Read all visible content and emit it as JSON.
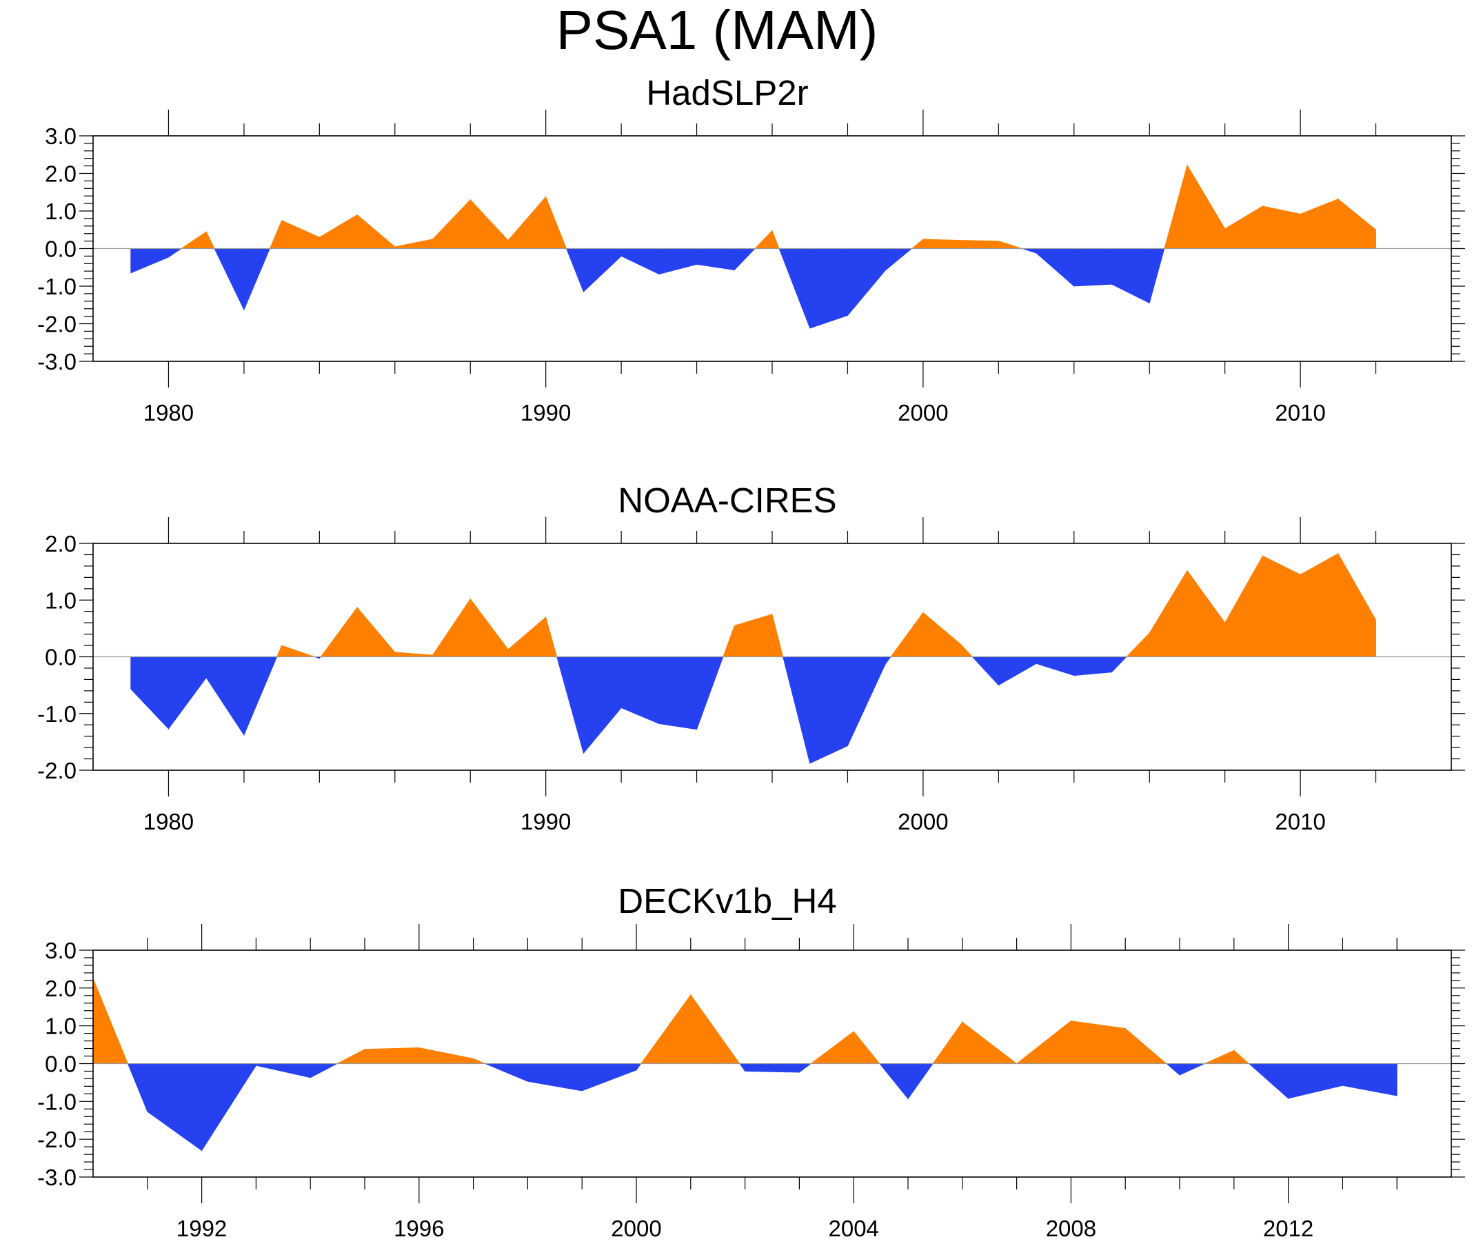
{
  "title": "PSA1 (MAM)",
  "colors": {
    "positive": "#ff8000",
    "negative": "#2541f0",
    "axis": "#000000",
    "zero_line": "#9a9a9a"
  },
  "chart_data": [
    {
      "type": "area",
      "title": "HadSLP2r",
      "xlim": [
        1978,
        2014
      ],
      "ylim": [
        -3,
        3
      ],
      "y_ticks": [
        -3,
        -2,
        -1,
        0,
        1,
        2,
        3
      ],
      "y_tick_labels": [
        "-3.0",
        "-2.0",
        "-1.0",
        "0.0",
        "1.0",
        "2.0",
        "3.0"
      ],
      "x_major_ticks": [
        1980,
        1990,
        2000,
        2010
      ],
      "x_tick_labels": [
        "1980",
        "1990",
        "2000",
        "2010"
      ],
      "x_minor_step": 2,
      "x": [
        1979,
        1980,
        1981,
        1982,
        1983,
        1984,
        1985,
        1986,
        1987,
        1988,
        1989,
        1990,
        1991,
        1992,
        1993,
        1994,
        1995,
        1996,
        1997,
        1998,
        1999,
        2000,
        2001,
        2002,
        2003,
        2004,
        2005,
        2006,
        2007,
        2008,
        2009,
        2010,
        2011,
        2012
      ],
      "values": [
        -0.65,
        -0.23,
        0.45,
        -1.63,
        0.75,
        0.3,
        0.9,
        0.05,
        0.25,
        1.3,
        0.22,
        1.38,
        -1.15,
        -0.2,
        -0.68,
        -0.42,
        -0.57,
        0.48,
        -2.12,
        -1.78,
        -0.58,
        0.25,
        0.22,
        0.2,
        -0.12,
        -1.0,
        -0.95,
        -1.45,
        2.22,
        0.53,
        1.13,
        0.92,
        1.32,
        0.5
      ]
    },
    {
      "type": "area",
      "title": "NOAA-CIRES",
      "xlim": [
        1978,
        2014
      ],
      "ylim": [
        -2,
        2
      ],
      "y_ticks": [
        -2,
        -1,
        0,
        1,
        2
      ],
      "y_tick_labels": [
        "-2.0",
        "-1.0",
        "0.0",
        "1.0",
        "2.0"
      ],
      "x_major_ticks": [
        1980,
        1990,
        2000,
        2010
      ],
      "x_tick_labels": [
        "1980",
        "1990",
        "2000",
        "2010"
      ],
      "x_minor_step": 2,
      "x": [
        1979,
        1980,
        1981,
        1982,
        1983,
        1984,
        1985,
        1986,
        1987,
        1988,
        1989,
        1990,
        1991,
        1992,
        1993,
        1994,
        1995,
        1996,
        1997,
        1998,
        1999,
        2000,
        2001,
        2002,
        2003,
        2004,
        2005,
        2006,
        2007,
        2008,
        2009,
        2010,
        2011,
        2012
      ],
      "values": [
        -0.57,
        -1.27,
        -0.37,
        -1.38,
        0.2,
        -0.03,
        0.87,
        0.08,
        0.03,
        1.02,
        0.13,
        0.7,
        -1.7,
        -0.9,
        -1.18,
        -1.28,
        0.55,
        0.75,
        -1.88,
        -1.57,
        -0.13,
        0.78,
        0.22,
        -0.5,
        -0.12,
        -0.33,
        -0.27,
        0.42,
        1.52,
        0.6,
        1.78,
        1.45,
        1.82,
        0.65
      ]
    },
    {
      "type": "area",
      "title": "DECKv1b_H4",
      "xlim": [
        1990,
        2015
      ],
      "ylim": [
        -3,
        3
      ],
      "y_ticks": [
        -3,
        -2,
        -1,
        0,
        1,
        2,
        3
      ],
      "y_tick_labels": [
        "-3.0",
        "-2.0",
        "-1.0",
        "0.0",
        "1.0",
        "2.0",
        "3.0"
      ],
      "x_major_ticks": [
        1992,
        1996,
        2000,
        2004,
        2008,
        2012
      ],
      "x_tick_labels": [
        "1992",
        "1996",
        "2000",
        "2004",
        "2008",
        "2012"
      ],
      "x_minor_step": 1,
      "x": [
        1990,
        1991,
        1992,
        1993,
        1994,
        1995,
        1996,
        1997,
        1998,
        1999,
        2000,
        2001,
        2002,
        2003,
        2004,
        2005,
        2006,
        2007,
        2008,
        2009,
        2010,
        2011,
        2012,
        2013,
        2014
      ],
      "values": [
        2.25,
        -1.27,
        -2.3,
        -0.05,
        -0.37,
        0.38,
        0.42,
        0.13,
        -0.47,
        -0.72,
        -0.17,
        1.82,
        -0.2,
        -0.23,
        0.85,
        -0.93,
        1.1,
        0.0,
        1.13,
        0.93,
        -0.3,
        0.35,
        -0.92,
        -0.58,
        -0.85
      ]
    }
  ]
}
